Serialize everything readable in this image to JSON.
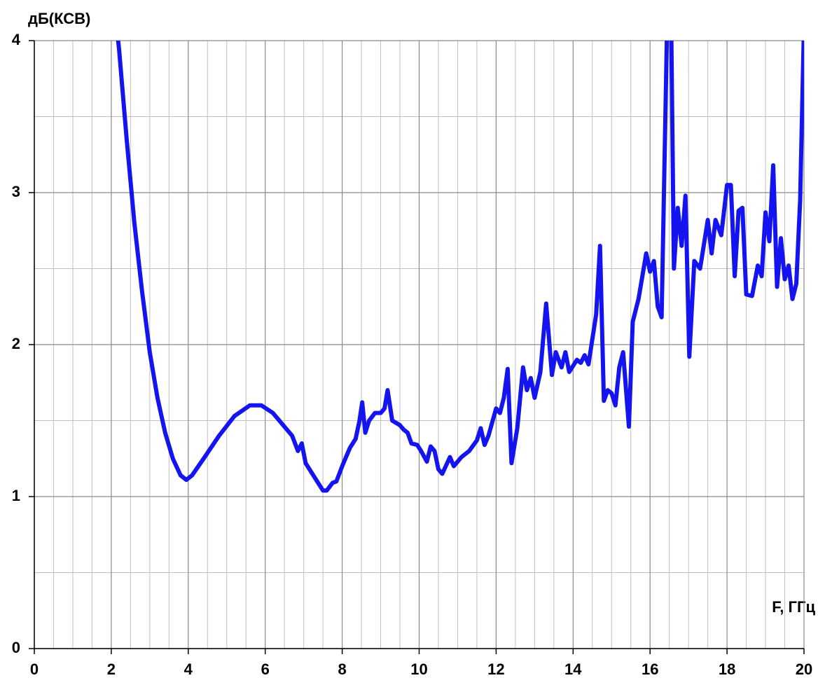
{
  "chart_data": {
    "type": "line",
    "ylabel": "дБ(КСВ)",
    "xlabel": "F, ГГц",
    "x": [
      2.0,
      2.2,
      2.4,
      2.6,
      2.8,
      3.0,
      3.2,
      3.4,
      3.6,
      3.8,
      3.95,
      4.1,
      4.4,
      4.8,
      5.2,
      5.6,
      5.9,
      6.2,
      6.5,
      6.7,
      6.85,
      6.95,
      7.05,
      7.3,
      7.5,
      7.6,
      7.75,
      7.85,
      8.0,
      8.2,
      8.35,
      8.45,
      8.52,
      8.6,
      8.7,
      8.85,
      9.0,
      9.1,
      9.18,
      9.3,
      9.5,
      9.6,
      9.7,
      9.8,
      9.95,
      10.05,
      10.2,
      10.3,
      10.4,
      10.5,
      10.6,
      10.8,
      10.9,
      11.1,
      11.3,
      11.5,
      11.6,
      11.7,
      11.8,
      12.0,
      12.1,
      12.2,
      12.3,
      12.4,
      12.55,
      12.7,
      12.8,
      12.9,
      13.0,
      13.15,
      13.3,
      13.45,
      13.55,
      13.7,
      13.8,
      13.9,
      14.1,
      14.2,
      14.3,
      14.4,
      14.6,
      14.7,
      14.8,
      14.9,
      15.0,
      15.1,
      15.2,
      15.3,
      15.45,
      15.55,
      15.7,
      15.9,
      16.0,
      16.1,
      16.2,
      16.3,
      16.45,
      16.55,
      16.62,
      16.72,
      16.82,
      16.92,
      17.02,
      17.15,
      17.3,
      17.5,
      17.6,
      17.7,
      17.85,
      18.0,
      18.1,
      18.2,
      18.3,
      18.4,
      18.5,
      18.65,
      18.8,
      18.9,
      19.0,
      19.1,
      19.2,
      19.3,
      19.4,
      19.5,
      19.6,
      19.7,
      19.8,
      19.9,
      20.0
    ],
    "series": [
      {
        "name": "КСВ",
        "color": "#1414f0",
        "values": [
          4.4,
          3.95,
          3.35,
          2.8,
          2.35,
          1.95,
          1.65,
          1.42,
          1.25,
          1.14,
          1.11,
          1.14,
          1.25,
          1.4,
          1.53,
          1.6,
          1.6,
          1.55,
          1.46,
          1.4,
          1.3,
          1.35,
          1.22,
          1.12,
          1.04,
          1.04,
          1.09,
          1.1,
          1.2,
          1.32,
          1.38,
          1.5,
          1.62,
          1.42,
          1.5,
          1.55,
          1.55,
          1.58,
          1.7,
          1.5,
          1.47,
          1.44,
          1.42,
          1.35,
          1.34,
          1.3,
          1.23,
          1.33,
          1.3,
          1.18,
          1.15,
          1.26,
          1.2,
          1.26,
          1.3,
          1.37,
          1.45,
          1.34,
          1.4,
          1.58,
          1.55,
          1.65,
          1.84,
          1.22,
          1.45,
          1.85,
          1.7,
          1.78,
          1.65,
          1.82,
          2.27,
          1.8,
          1.95,
          1.85,
          1.95,
          1.82,
          1.9,
          1.88,
          1.93,
          1.87,
          2.2,
          2.65,
          1.63,
          1.7,
          1.68,
          1.6,
          1.85,
          1.95,
          1.46,
          2.15,
          2.3,
          2.6,
          2.48,
          2.55,
          2.25,
          2.18,
          4.2,
          4.1,
          2.5,
          2.9,
          2.65,
          2.98,
          1.92,
          2.55,
          2.5,
          2.82,
          2.6,
          2.82,
          2.72,
          3.05,
          3.05,
          2.45,
          2.88,
          2.9,
          2.33,
          2.32,
          2.52,
          2.45,
          2.87,
          2.68,
          3.18,
          2.38,
          2.7,
          2.43,
          2.52,
          2.3,
          2.4,
          2.95,
          4.1
        ]
      }
    ],
    "xlim": [
      0,
      20
    ],
    "xticks": [
      0,
      2,
      4,
      6,
      8,
      10,
      12,
      14,
      16,
      18,
      20
    ],
    "ylim": [
      0,
      4
    ],
    "yticks": [
      0,
      1,
      2,
      3,
      4
    ],
    "grid": true,
    "minor_grid": {
      "x": 4,
      "y": 2
    }
  }
}
